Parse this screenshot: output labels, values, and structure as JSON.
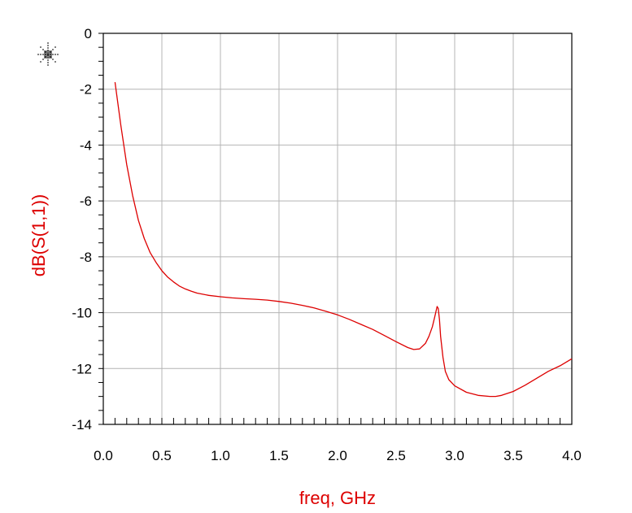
{
  "chart_data": {
    "type": "line",
    "xlabel": "freq, GHz",
    "ylabel": "dB(S(1,1))",
    "xlim": [
      0.0,
      4.0
    ],
    "ylim": [
      -14,
      0
    ],
    "grid": true,
    "x_ticks": [
      "0.0",
      "0.5",
      "1.0",
      "1.5",
      "2.0",
      "2.5",
      "3.0",
      "3.5",
      "4.0"
    ],
    "y_ticks": [
      "0",
      "-2",
      "-4",
      "-6",
      "-8",
      "-10",
      "-12",
      "-14"
    ],
    "series": [
      {
        "color": "#dd0000",
        "x": [
          0.1,
          0.15,
          0.2,
          0.25,
          0.3,
          0.35,
          0.4,
          0.45,
          0.5,
          0.55,
          0.6,
          0.65,
          0.7,
          0.75,
          0.8,
          0.9,
          1.0,
          1.1,
          1.2,
          1.3,
          1.4,
          1.5,
          1.6,
          1.7,
          1.8,
          1.9,
          2.0,
          2.1,
          2.2,
          2.3,
          2.4,
          2.5,
          2.6,
          2.65,
          2.7,
          2.75,
          2.78,
          2.81,
          2.83,
          2.85,
          2.86,
          2.87,
          2.88,
          2.9,
          2.92,
          2.95,
          3.0,
          3.1,
          3.2,
          3.3,
          3.35,
          3.4,
          3.5,
          3.6,
          3.7,
          3.8,
          3.9,
          4.0
        ],
        "y": [
          -1.75,
          -3.3,
          -4.7,
          -5.8,
          -6.7,
          -7.35,
          -7.85,
          -8.2,
          -8.5,
          -8.73,
          -8.9,
          -9.05,
          -9.15,
          -9.23,
          -9.3,
          -9.38,
          -9.43,
          -9.47,
          -9.5,
          -9.52,
          -9.55,
          -9.6,
          -9.66,
          -9.74,
          -9.83,
          -9.95,
          -10.08,
          -10.24,
          -10.42,
          -10.6,
          -10.82,
          -11.04,
          -11.25,
          -11.32,
          -11.3,
          -11.1,
          -10.85,
          -10.5,
          -10.15,
          -9.78,
          -9.85,
          -10.25,
          -10.85,
          -11.6,
          -12.1,
          -12.4,
          -12.62,
          -12.85,
          -12.96,
          -13.0,
          -13.0,
          -12.96,
          -12.82,
          -12.6,
          -12.35,
          -12.1,
          -11.9,
          -11.65
        ]
      }
    ]
  }
}
